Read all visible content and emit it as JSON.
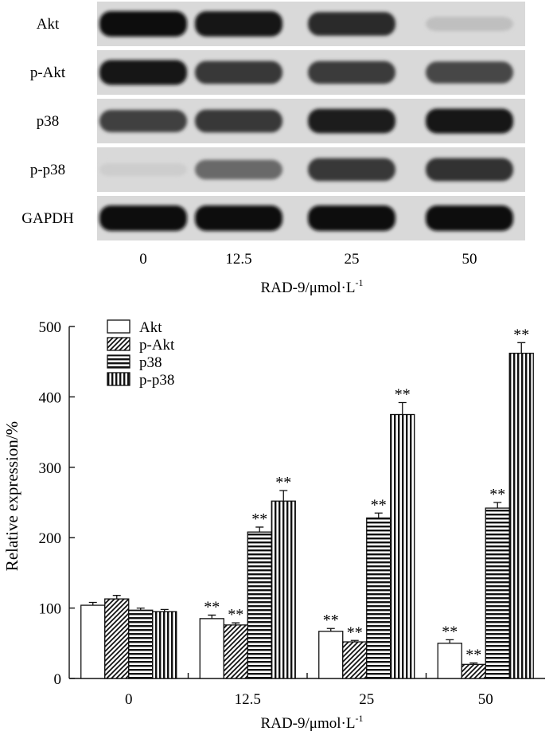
{
  "blot": {
    "rows": [
      {
        "label": "Akt",
        "intensity": [
          1.0,
          0.98,
          0.86,
          0.12
        ]
      },
      {
        "label": "p-Akt",
        "intensity": [
          0.95,
          0.8,
          0.78,
          0.72
        ]
      },
      {
        "label": "p38",
        "intensity": [
          0.75,
          0.8,
          0.92,
          0.95
        ]
      },
      {
        "label": "p-p38",
        "intensity": [
          0.05,
          0.55,
          0.8,
          0.82
        ]
      },
      {
        "label": "GAPDH",
        "intensity": [
          1.0,
          1.0,
          1.0,
          1.0
        ]
      }
    ],
    "lanes": [
      "0",
      "12.5",
      "25",
      "50"
    ],
    "xlabel_main": "RAD-9/μmol·L",
    "xlabel_sup": "-1"
  },
  "chart_data": {
    "type": "bar",
    "categories": [
      "0",
      "12.5",
      "25",
      "50"
    ],
    "series": [
      {
        "name": "Akt",
        "pattern": "empty",
        "values": [
          104,
          85,
          67,
          50
        ],
        "errors": [
          4,
          5,
          4,
          5
        ],
        "sig": [
          false,
          true,
          true,
          true
        ]
      },
      {
        "name": "p-Akt",
        "pattern": "diag",
        "values": [
          113,
          76,
          52,
          20
        ],
        "errors": [
          5,
          3,
          2,
          2
        ],
        "sig": [
          false,
          true,
          true,
          true
        ]
      },
      {
        "name": "p38",
        "pattern": "horiz",
        "values": [
          97,
          208,
          228,
          242
        ],
        "errors": [
          3,
          7,
          7,
          8
        ],
        "sig": [
          false,
          true,
          true,
          true
        ]
      },
      {
        "name": "p-p38",
        "pattern": "vert",
        "values": [
          95,
          252,
          375,
          462
        ],
        "errors": [
          3,
          15,
          17,
          15
        ],
        "sig": [
          false,
          true,
          true,
          true
        ]
      }
    ],
    "sig_label": "**",
    "ylim": [
      0,
      500
    ],
    "yticks": [
      0,
      100,
      200,
      300,
      400,
      500
    ],
    "ylabel": "Relative expression/%",
    "xlabel_main": "RAD-9/μmol·L",
    "xlabel_sup": "-1",
    "legend_position": "top-left",
    "grid": false
  }
}
